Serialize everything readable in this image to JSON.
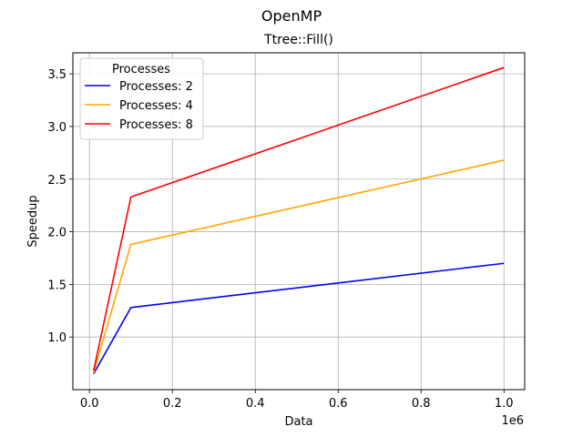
{
  "chart_data": {
    "type": "line",
    "suptitle": "OpenMP",
    "title": "Ttree::Fill()",
    "xlabel": "Data",
    "ylabel": "Speedup",
    "x_offset_label": "1e6",
    "x_scale": 1000000,
    "xlim": [
      -40000,
      1050000
    ],
    "ylim": [
      0.5,
      3.7
    ],
    "x_ticks": [
      0,
      200000,
      400000,
      600000,
      800000,
      1000000
    ],
    "x_tick_labels": [
      "0.0",
      "0.2",
      "0.4",
      "0.6",
      "0.8",
      "1.0"
    ],
    "y_ticks": [
      1.0,
      1.5,
      2.0,
      2.5,
      3.0,
      3.5
    ],
    "y_tick_labels": [
      "1.0",
      "1.5",
      "2.0",
      "2.5",
      "3.0",
      "3.5"
    ],
    "grid": true,
    "legend": {
      "title": "Processes",
      "placement": "top-left"
    },
    "x": [
      10000,
      100000,
      1000000
    ],
    "series": [
      {
        "name": "Processes: 2",
        "color": "#0000ff",
        "values": [
          0.65,
          1.28,
          1.7
        ]
      },
      {
        "name": "Processes: 4",
        "color": "#ffa500",
        "values": [
          0.66,
          1.88,
          2.68
        ]
      },
      {
        "name": "Processes: 8",
        "color": "#ff0000",
        "values": [
          0.68,
          2.33,
          3.56
        ]
      }
    ]
  }
}
